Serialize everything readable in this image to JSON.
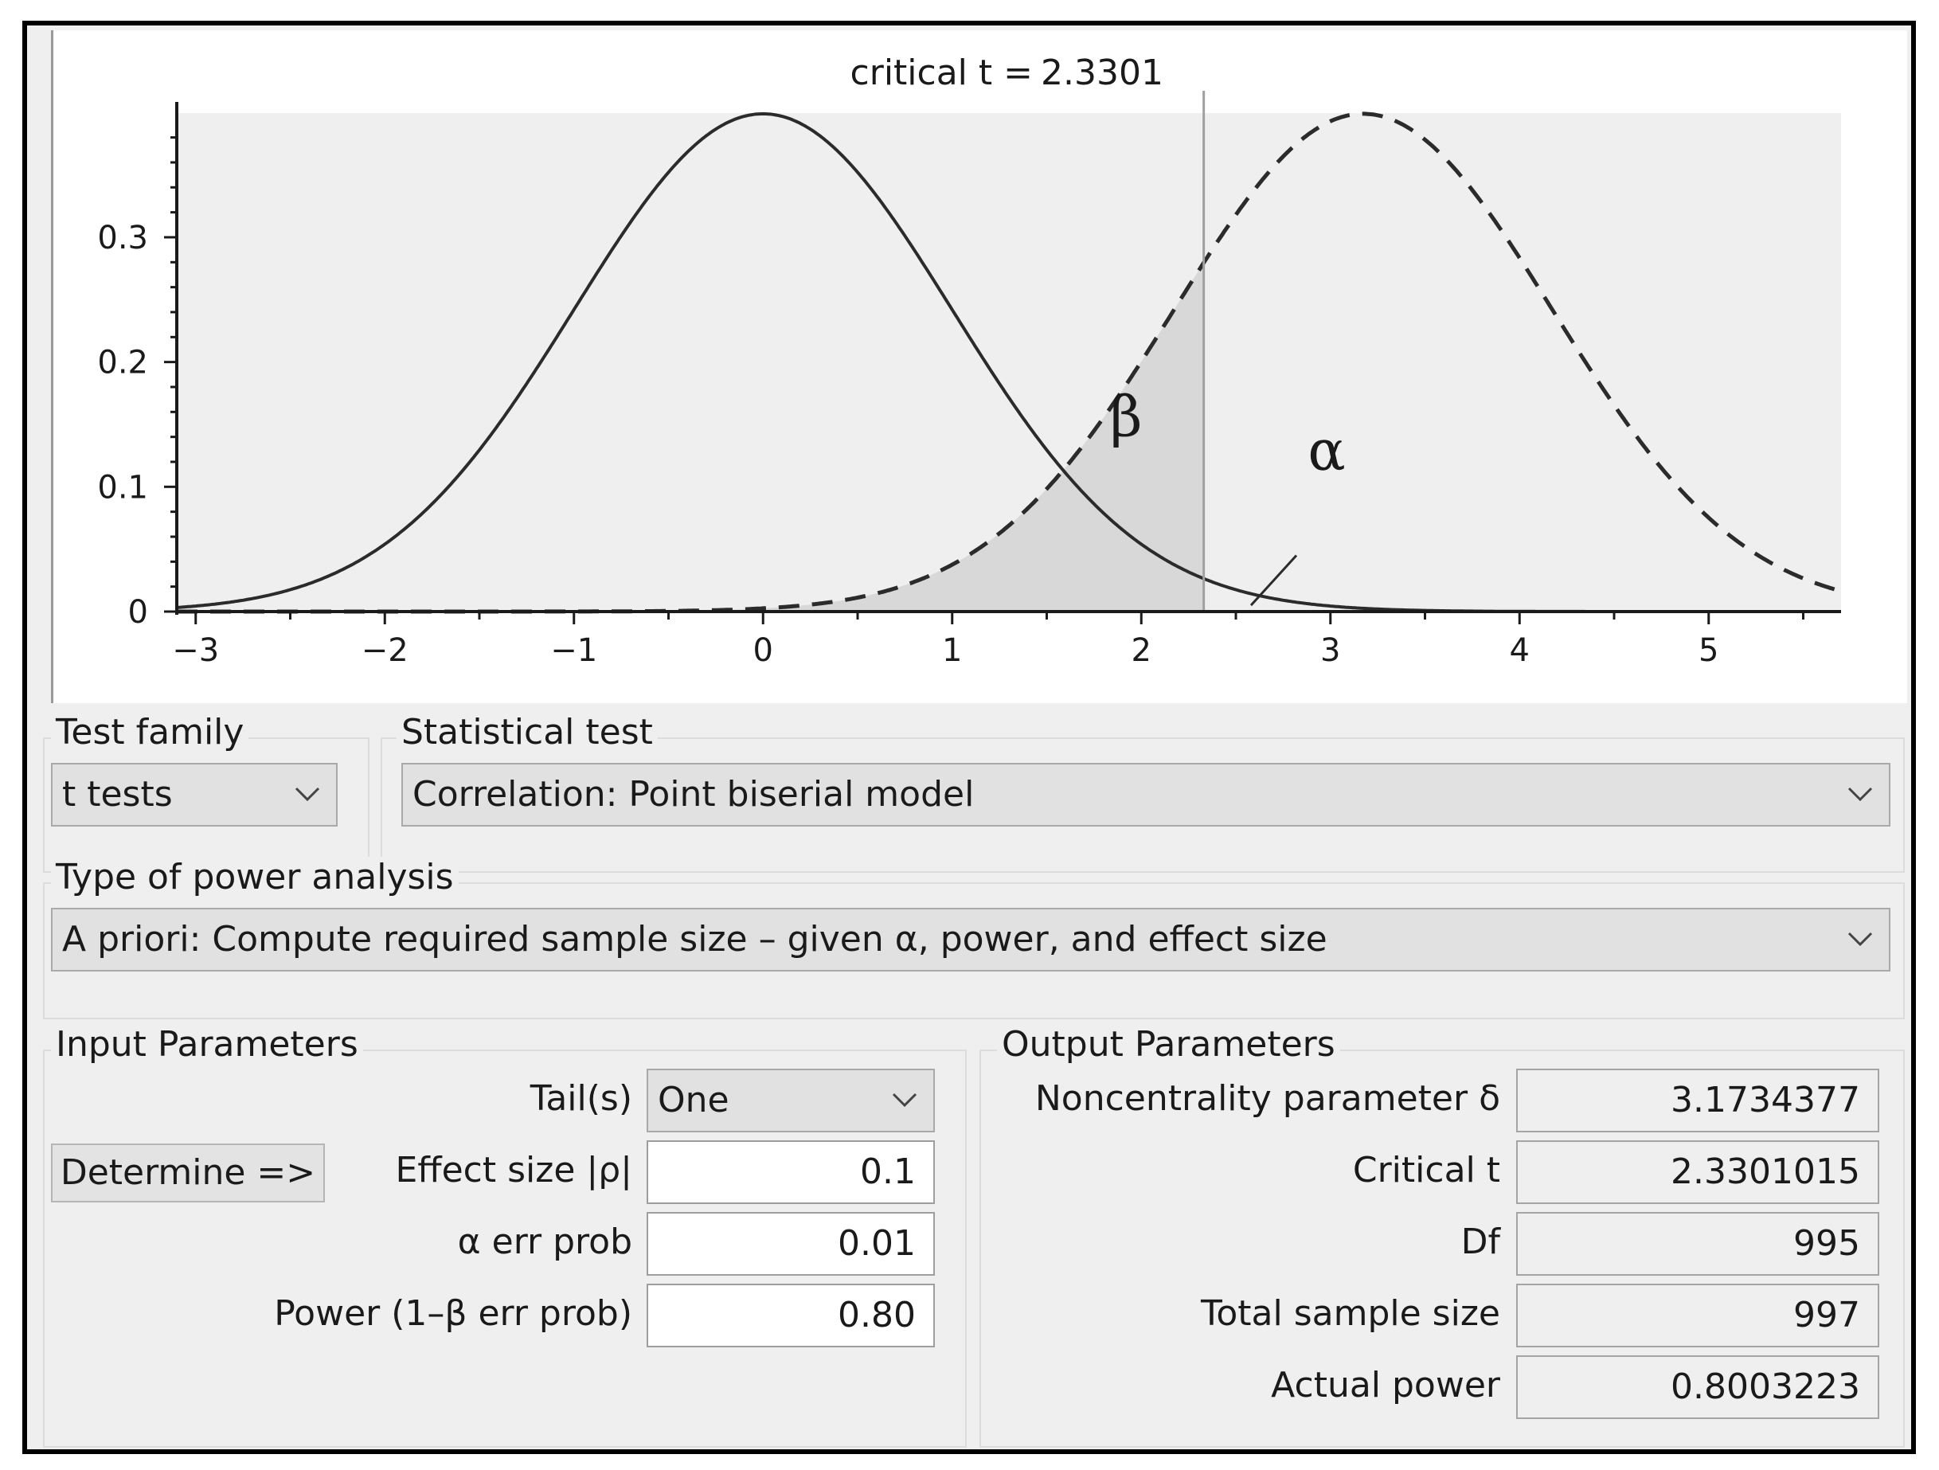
{
  "plot": {
    "critical_label": "critical t = ",
    "critical_value": "2.3301",
    "beta_symbol": "β",
    "alpha_symbol": "α",
    "x_ticks": [
      "−3",
      "−2",
      "−1",
      "0",
      "1",
      "2",
      "3",
      "4",
      "5"
    ],
    "y_ticks": [
      "0",
      "0.1",
      "0.2",
      "0.3"
    ],
    "x_range": [
      -3.1,
      5.7
    ],
    "y_range": [
      0,
      0.4
    ],
    "central_mean": 0,
    "noncentral_mean": 3.1734377,
    "critical_t": 2.3301015,
    "colors": {
      "plot_bg": "#efefef",
      "shade": "#d8d8d8",
      "curve": "#2b2b2b",
      "critical_line": "#a0a0a0"
    }
  },
  "test_family": {
    "label": "Test family",
    "value": "t tests"
  },
  "statistical_test": {
    "label": "Statistical test",
    "value": "Correlation: Point biserial model"
  },
  "power_analysis": {
    "label": "Type of power analysis",
    "value": "A priori: Compute required sample size – given α, power, and effect size"
  },
  "input": {
    "label": "Input Parameters",
    "determine_button": "Determine =>",
    "tails_label": "Tail(s)",
    "tails_value": "One",
    "effect_label": "Effect size |ρ|",
    "effect_value": "0.1",
    "alpha_label": "α err prob",
    "alpha_value": "0.01",
    "power_label": "Power (1–β err prob)",
    "power_value": "0.80"
  },
  "output": {
    "label": "Output Parameters",
    "noncentrality_label": "Noncentrality parameter δ",
    "noncentrality_value": "3.1734377",
    "critical_t_label": "Critical t",
    "critical_t_value": "2.3301015",
    "df_label": "Df",
    "df_value": "995",
    "total_n_label": "Total sample size",
    "total_n_value": "997",
    "actual_power_label": "Actual power",
    "actual_power_value": "0.8003223"
  }
}
